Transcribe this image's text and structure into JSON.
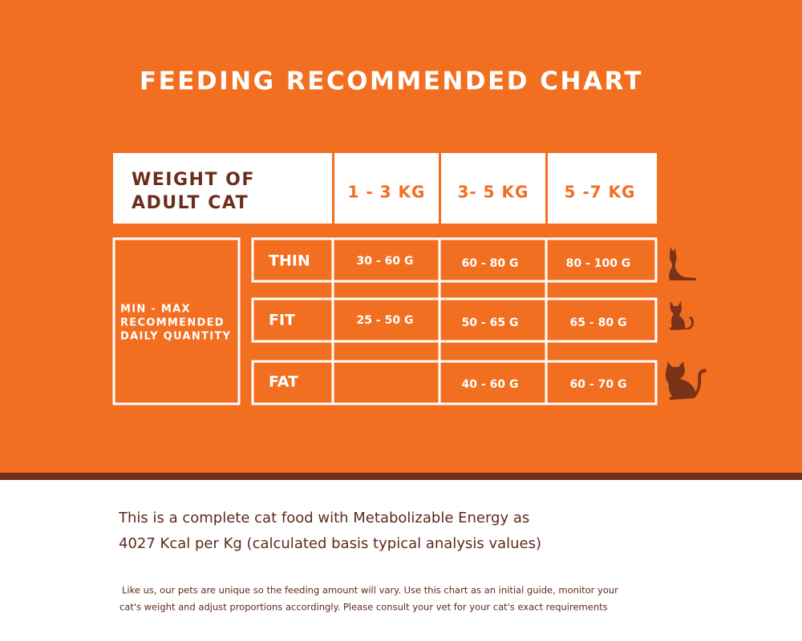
{
  "title": "FEEDING RECOMMENDED CHART",
  "table": {
    "header": {
      "label": [
        "WEIGHT OF",
        "ADULT CAT"
      ],
      "columns": [
        "1 - 3 KG",
        "3- 5 KG",
        "5 -7 KG"
      ]
    },
    "row_group_label": [
      "MIN - MAX",
      "RECOMMENDED",
      "DAILY QUANTITY"
    ],
    "rows": [
      {
        "label": "THIN",
        "cells": [
          "30 - 60 G",
          "60 - 80 G",
          "80 - 100 G"
        ]
      },
      {
        "label": "FIT",
        "cells": [
          "25 - 50 G",
          "50 - 65 G",
          "65 - 80 G"
        ]
      },
      {
        "label": "FAT",
        "cells": [
          null,
          "40 - 60 G",
          "60 - 70 G"
        ]
      }
    ]
  },
  "description": [
    "This is a complete cat food with Metabolizable Energy as",
    "4027 Kcal per Kg (calculated basis typical analysis values)"
  ],
  "note": [
    "Like us, our pets are unique so the feeding amount will vary. Use this chart as an initial guide, monitor your",
    "cat's weight and adjust proportions accordingly. Please consult your vet for your cat's exact requirements"
  ]
}
